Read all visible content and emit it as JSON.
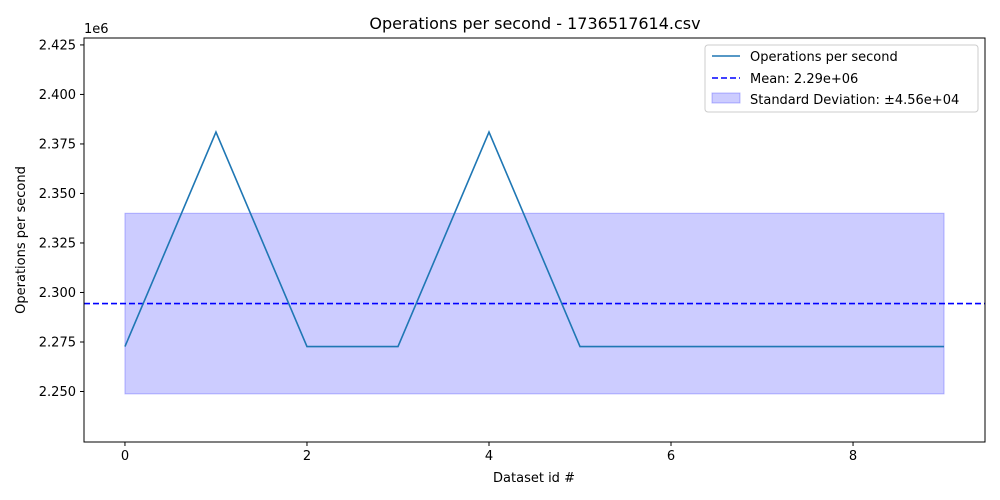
{
  "chart_data": {
    "type": "line",
    "title": "Operations per second - 1736517614.csv",
    "xlabel": "Dataset id #",
    "ylabel": "Operations per second",
    "y_offset_label": "1e6",
    "y_multiplier": 1000000,
    "xlim": [
      -0.45,
      9.45
    ],
    "ylim": [
      2.2245,
      2.4285
    ],
    "x_ticks": [
      0,
      2,
      4,
      6,
      8
    ],
    "y_ticks": [
      2.25,
      2.275,
      2.3,
      2.325,
      2.35,
      2.375,
      2.4,
      2.425
    ],
    "x": [
      0,
      1,
      2,
      3,
      4,
      5,
      6,
      7,
      8,
      9
    ],
    "series": [
      {
        "name": "Operations per second",
        "color": "#1f77b4",
        "values": [
          2.2727,
          2.381,
          2.2727,
          2.2727,
          2.381,
          2.2727,
          2.2727,
          2.2727,
          2.2727,
          2.2727
        ]
      }
    ],
    "mean": {
      "label": "Mean: 2.29e+06",
      "value": 2.2944,
      "color": "#0000ff",
      "style": "dashed"
    },
    "std_band": {
      "label": "Standard Deviation: ±4.56e+04",
      "lower": 2.2488,
      "upper": 2.34,
      "x_range": [
        0,
        9
      ],
      "color": "#0000ff",
      "opacity": 0.2
    },
    "legend_position": "top-right",
    "grid": false
  }
}
